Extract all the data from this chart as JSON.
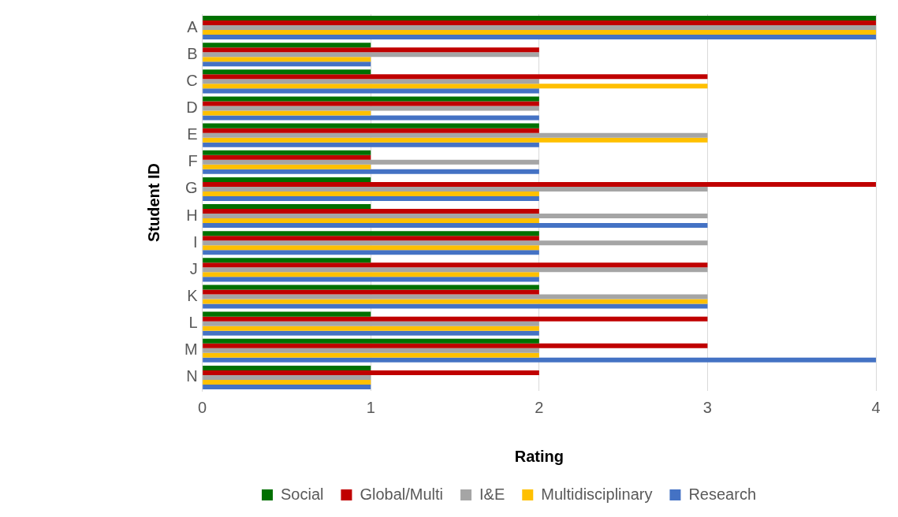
{
  "chart_data": {
    "type": "bar",
    "orientation": "horizontal",
    "xlabel": "Rating",
    "ylabel": "Student ID",
    "categories": [
      "A",
      "B",
      "C",
      "D",
      "E",
      "F",
      "G",
      "H",
      "I",
      "J",
      "K",
      "L",
      "M",
      "N"
    ],
    "series": [
      {
        "name": "Social",
        "color": "#007000",
        "values": [
          4,
          1,
          1,
          2,
          2,
          1,
          1,
          1,
          2,
          1,
          2,
          1,
          2,
          1
        ]
      },
      {
        "name": "Global/Multi",
        "color": "#c00000",
        "values": [
          4,
          2,
          3,
          2,
          2,
          1,
          4,
          2,
          2,
          3,
          2,
          3,
          3,
          2
        ]
      },
      {
        "name": "I&E",
        "color": "#a5a5a5",
        "values": [
          4,
          2,
          2,
          2,
          3,
          2,
          3,
          3,
          3,
          3,
          3,
          2,
          2,
          1
        ]
      },
      {
        "name": "Multidisciplinary",
        "color": "#ffc000",
        "values": [
          4,
          1,
          3,
          1,
          3,
          1,
          2,
          2,
          2,
          2,
          3,
          2,
          2,
          1
        ]
      },
      {
        "name": "Research",
        "color": "#4472c4",
        "values": [
          4,
          1,
          2,
          2,
          2,
          2,
          2,
          3,
          2,
          2,
          3,
          2,
          4,
          1
        ]
      }
    ],
    "xlim": [
      0,
      4
    ],
    "xticks": [
      0,
      1,
      2,
      3,
      4
    ],
    "grid": "x",
    "legend": "bottom"
  }
}
